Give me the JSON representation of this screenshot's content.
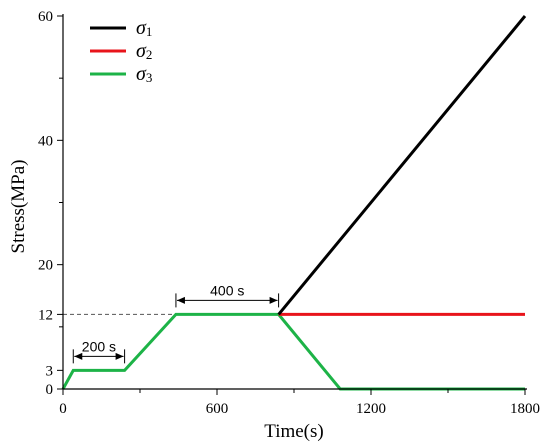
{
  "chart_data": {
    "type": "line",
    "xlabel": "Time(s)",
    "ylabel": "Stress(MPa)",
    "xlim": [
      0,
      1800
    ],
    "ylim": [
      0,
      60
    ],
    "xticks": [
      0,
      600,
      1200,
      1800
    ],
    "yticks": [
      0,
      3,
      12,
      20,
      40,
      60
    ],
    "grid": false,
    "legend_position": "top-left",
    "series": [
      {
        "name": "σ1",
        "legend_symbol": "σ",
        "legend_subscript": "1",
        "color": "#000000",
        "points": [
          [
            840,
            12
          ],
          [
            1800,
            60
          ]
        ]
      },
      {
        "name": "σ2",
        "legend_symbol": "σ",
        "legend_subscript": "2",
        "color": "#e8141b",
        "points": [
          [
            840,
            12
          ],
          [
            1800,
            12
          ]
        ]
      },
      {
        "name": "σ3",
        "legend_symbol": "σ",
        "legend_subscript": "3",
        "color": "#1db347",
        "points": [
          [
            0,
            0
          ],
          [
            40,
            3
          ],
          [
            240,
            3
          ],
          [
            440,
            12
          ],
          [
            840,
            12
          ],
          [
            1080,
            0
          ],
          [
            1800,
            0
          ]
        ]
      }
    ],
    "reference_line": {
      "points": [
        [
          0,
          12
        ],
        [
          840,
          12
        ]
      ],
      "style": "dashed",
      "color": "#555555"
    },
    "annotations": [
      {
        "label": "200 s",
        "from": 40,
        "to": 240,
        "y": 3
      },
      {
        "label": "400 s",
        "from": 440,
        "to": 840,
        "y": 12
      }
    ]
  }
}
